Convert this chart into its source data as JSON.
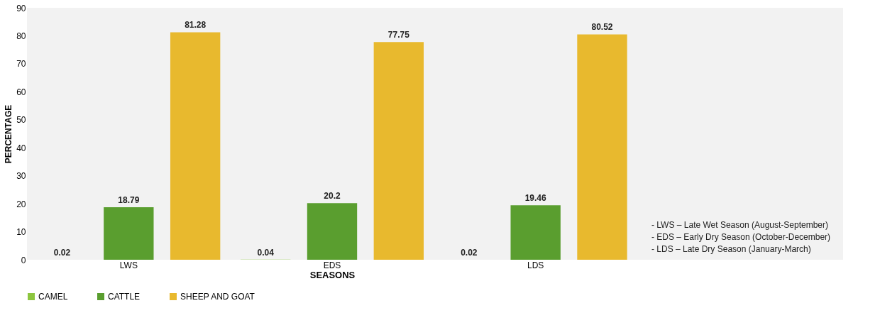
{
  "chart_data": {
    "type": "bar",
    "xlabel": "SEASONS",
    "ylabel": "PERCENTAGE",
    "categories": [
      "LWS",
      "EDS",
      "LDS"
    ],
    "series": [
      {
        "name": "CAMEL",
        "color": "#8dc63f",
        "values": [
          0.02,
          0.04,
          0.02
        ]
      },
      {
        "name": "CATTLE",
        "color": "#5a9e2f",
        "values": [
          18.79,
          20.2,
          19.46
        ]
      },
      {
        "name": "SHEEP AND GOAT",
        "color": "#e8b92e",
        "values": [
          81.28,
          77.75,
          80.52
        ]
      }
    ],
    "ylim": [
      0,
      90
    ],
    "yticks": [
      0,
      10,
      20,
      30,
      40,
      50,
      60,
      70,
      80,
      90
    ],
    "grid": false,
    "legend": "bottom",
    "data_labels": true,
    "annotations": [
      "-          LWS – Late Wet Season (August-September)",
      "-          EDS – Early Dry Season (October-December)",
      "-          LDS – Late Dry Season (January-March)"
    ]
  }
}
